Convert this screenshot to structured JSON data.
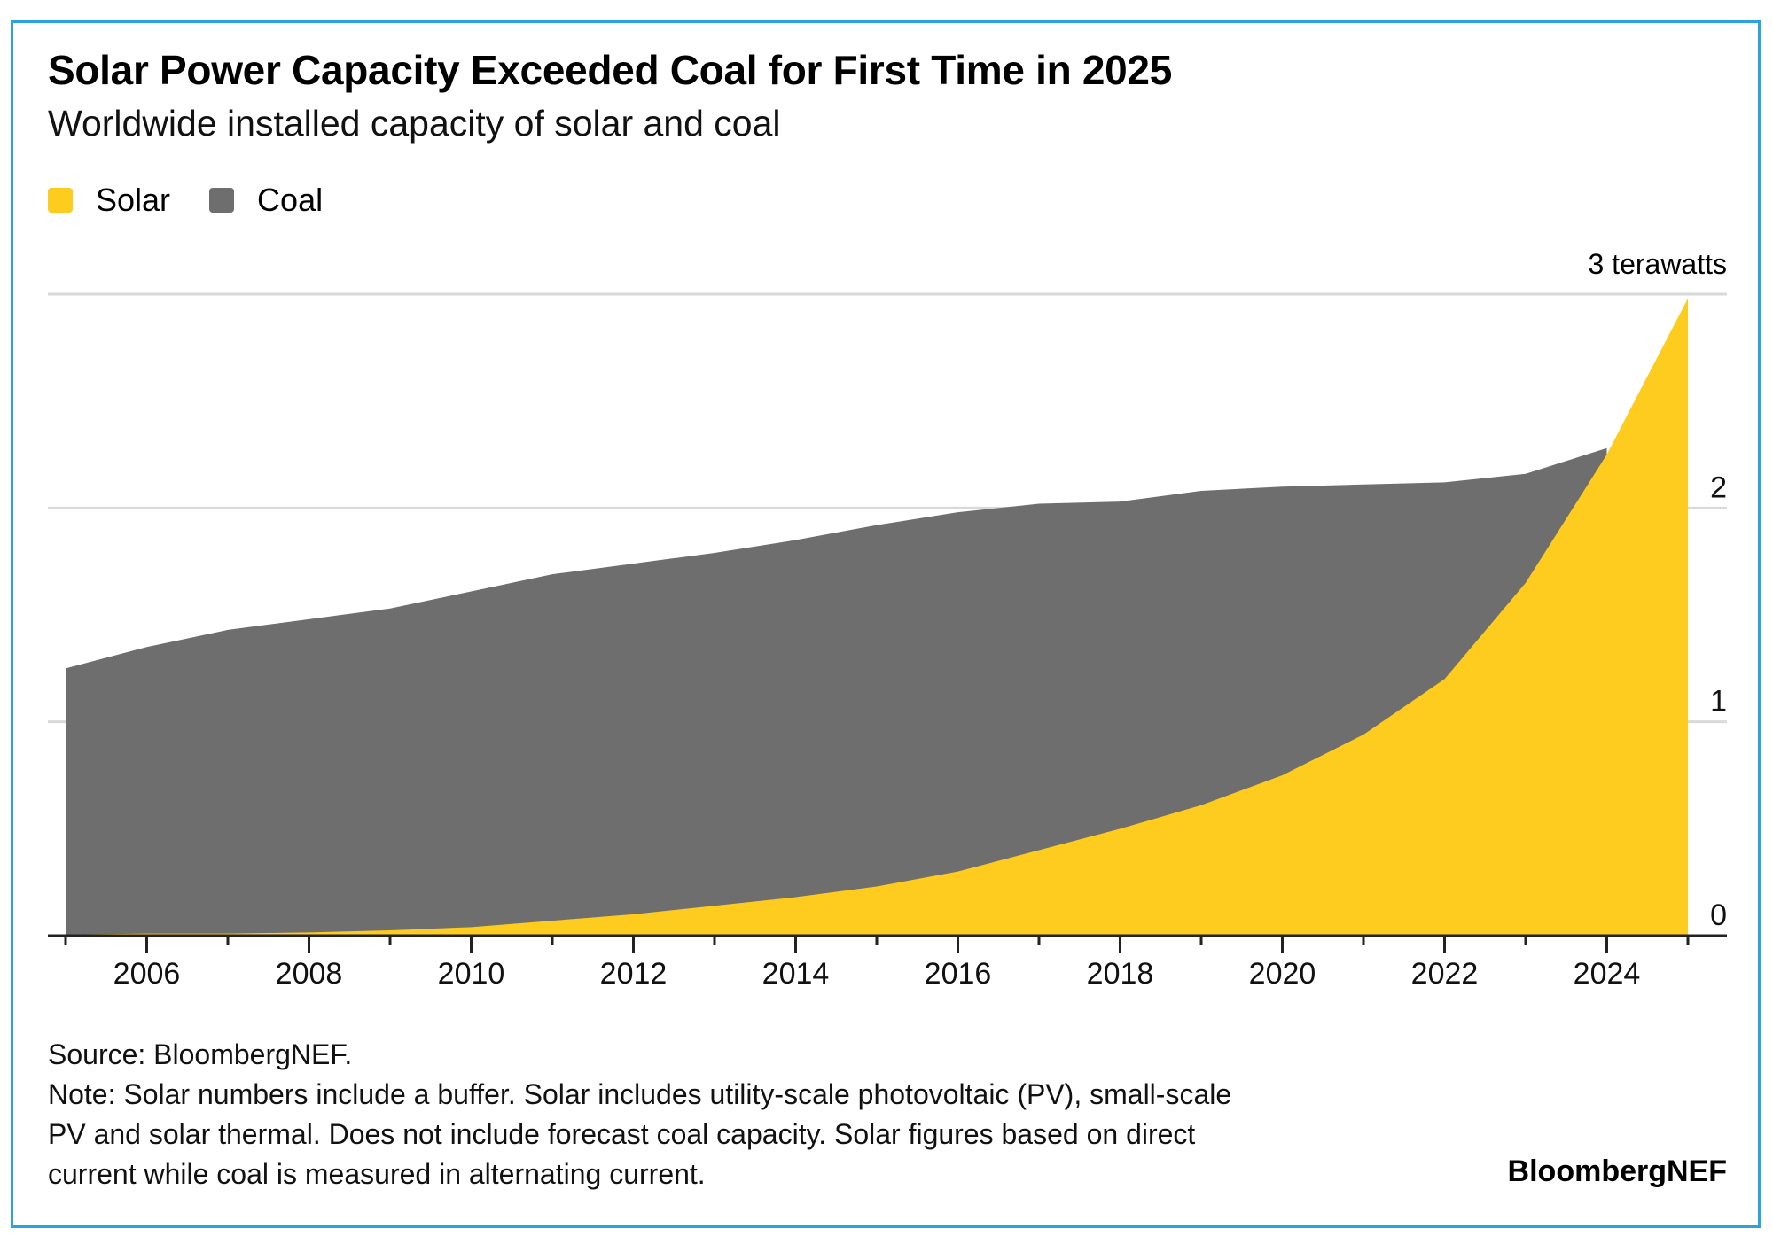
{
  "header": {
    "title": "Solar Power Capacity Exceeded Coal for First Time in 2025",
    "subtitle": "Worldwide installed capacity of solar and coal"
  },
  "legend": [
    {
      "label": "Solar",
      "color": "#fecb1f"
    },
    {
      "label": "Coal",
      "color": "#6e6e6e"
    }
  ],
  "footer": {
    "source": "Source: BloombergNEF.",
    "note_lines": [
      "Note: Solar numbers include a buffer. Solar includes utility-scale photovoltaic (PV), small-scale",
      "PV and solar thermal. Does not include forecast coal capacity. Solar figures based on direct",
      "current while coal is measured in alternating current."
    ],
    "brand": "BloombergNEF"
  },
  "chart_data": {
    "type": "area",
    "title": "Solar Power Capacity Exceeded Coal for First Time in 2025",
    "subtitle": "Worldwide installed capacity of solar and coal",
    "xlabel": "",
    "ylabel": "terawatts",
    "unit_label": "3 terawatts",
    "x": [
      2005,
      2006,
      2007,
      2008,
      2009,
      2010,
      2011,
      2012,
      2013,
      2014,
      2015,
      2016,
      2017,
      2018,
      2019,
      2020,
      2021,
      2022,
      2023,
      2024,
      2025
    ],
    "series": [
      {
        "name": "Coal",
        "color": "#6e6e6e",
        "values": [
          1.25,
          1.35,
          1.43,
          1.48,
          1.53,
          1.61,
          1.69,
          1.74,
          1.79,
          1.85,
          1.92,
          1.98,
          2.02,
          2.03,
          2.08,
          2.1,
          2.11,
          2.12,
          2.16,
          2.28,
          null
        ]
      },
      {
        "name": "Solar",
        "color": "#fecb1f",
        "values": [
          0.005,
          0.01,
          0.01,
          0.015,
          0.025,
          0.04,
          0.07,
          0.1,
          0.14,
          0.18,
          0.23,
          0.3,
          0.4,
          0.5,
          0.61,
          0.75,
          0.94,
          1.2,
          1.65,
          2.25,
          2.98
        ]
      }
    ],
    "xlim": [
      2005,
      2025
    ],
    "ylim": [
      0,
      3
    ],
    "x_tick_labels": [
      "2006",
      "2008",
      "2010",
      "2012",
      "2014",
      "2016",
      "2018",
      "2020",
      "2022",
      "2024"
    ],
    "y_tick_labels": [
      "0",
      "1",
      "2",
      "3 terawatts"
    ],
    "y_ticks": [
      0,
      1,
      2,
      3
    ],
    "y_axis_side": "right",
    "grid": true,
    "legend_position": "top-left"
  }
}
